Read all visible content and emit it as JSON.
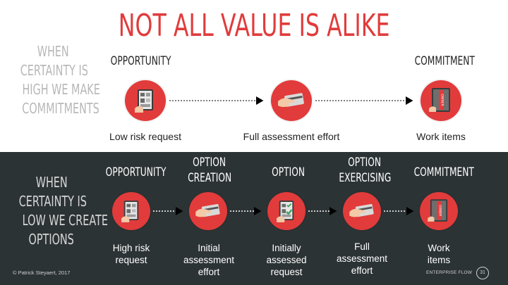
{
  "title": "NOT ALL VALUE IS ALIKE",
  "top_section": {
    "heading_lines": [
      "WHEN",
      "CERTAINTY IS",
      "HIGH WE MAKE",
      "COMMITMENTS"
    ],
    "stages": [
      {
        "label": "OPPORTUNITY",
        "icon": "document-board-icon",
        "caption": "Low risk request"
      },
      {
        "label": "",
        "icon": "hand-card-icon",
        "caption": "Full assessment effort"
      },
      {
        "label": "COMMITMENT",
        "icon": "owner-board-icon",
        "caption": "Work items"
      }
    ]
  },
  "bottom_section": {
    "heading_lines": [
      "WHEN",
      "CERTAINTY IS",
      "LOW WE CREATE",
      "OPTIONS"
    ],
    "stages": [
      {
        "label_lines": [
          "OPPORTUNITY"
        ],
        "icon": "document-board-icon",
        "caption_lines": [
          "High risk",
          "request"
        ]
      },
      {
        "label_lines": [
          "OPTION",
          "CREATION"
        ],
        "icon": "hand-card-icon",
        "caption_lines": [
          "Initial",
          "assessment",
          "effort"
        ]
      },
      {
        "label_lines": [
          "OPTION"
        ],
        "icon": "checklist-board-icon",
        "caption_lines": [
          "Initially",
          "assessed",
          "request"
        ]
      },
      {
        "label_lines": [
          "OPTION",
          "EXERCISING"
        ],
        "icon": "hand-card-icon",
        "caption_lines": [
          "Full",
          "assessment",
          "effort"
        ]
      },
      {
        "label_lines": [
          "COMMITMENT"
        ],
        "icon": "owner-board-icon",
        "caption_lines": [
          "Work",
          "items"
        ]
      }
    ]
  },
  "footer": {
    "copyright": "© Patrick Steyaert, 2017",
    "brand": "ENTERPRISE FLOW",
    "page_number": "31"
  },
  "colors": {
    "accent": "#e23b3b",
    "dark_band": "#2c3335",
    "muted_text": "#b8b8b8"
  }
}
